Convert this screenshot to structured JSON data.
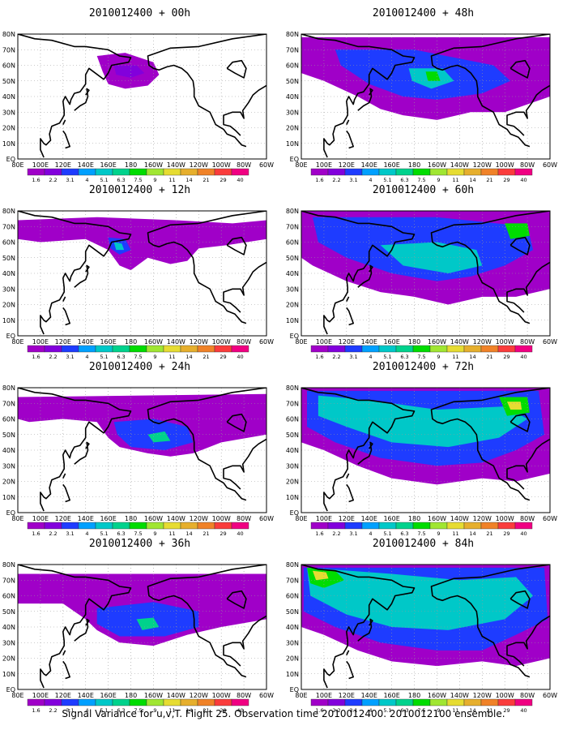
{
  "colorbar": {
    "labels": [
      "1.6",
      "2.2",
      "3.1",
      "4",
      "5.1",
      "6.3",
      "7.5",
      "9",
      "11",
      "14",
      "21",
      "29",
      "40"
    ],
    "colors": [
      "#a000c8",
      "#8200dc",
      "#1e3cff",
      "#00a0ff",
      "#00c8c8",
      "#00d28c",
      "#00dc00",
      "#a0e632",
      "#e6dc32",
      "#e6af2d",
      "#f08228",
      "#fa3c3c",
      "#f00082"
    ]
  },
  "axes": {
    "lat_labels": [
      "80N",
      "70N",
      "60N",
      "50N",
      "40N",
      "30N",
      "20N",
      "10N",
      "EQ"
    ],
    "lon_labels": [
      "80E",
      "100E",
      "120E",
      "140E",
      "160E",
      "180",
      "160W",
      "140W",
      "120W",
      "100W",
      "80W",
      "60W"
    ]
  },
  "panels": [
    {
      "title": "2010012400 + 00h",
      "col": 0,
      "row": 0,
      "level": 0
    },
    {
      "title": "2010012400 + 12h",
      "col": 0,
      "row": 1,
      "level": 1
    },
    {
      "title": "2010012400 + 24h",
      "col": 0,
      "row": 2,
      "level": 2
    },
    {
      "title": "2010012400 + 36h",
      "col": 0,
      "row": 3,
      "level": 3
    },
    {
      "title": "2010012400 + 48h",
      "col": 1,
      "row": 0,
      "level": 4
    },
    {
      "title": "2010012400 + 60h",
      "col": 1,
      "row": 1,
      "level": 5
    },
    {
      "title": "2010012400 + 72h",
      "col": 1,
      "row": 2,
      "level": 6
    },
    {
      "title": "2010012400 + 84h",
      "col": 1,
      "row": 3,
      "level": 7
    }
  ],
  "caption": "Signal Variance for u,v,T. Flight 25. Observation time 2010012400. 2010012100 ensemble."
}
